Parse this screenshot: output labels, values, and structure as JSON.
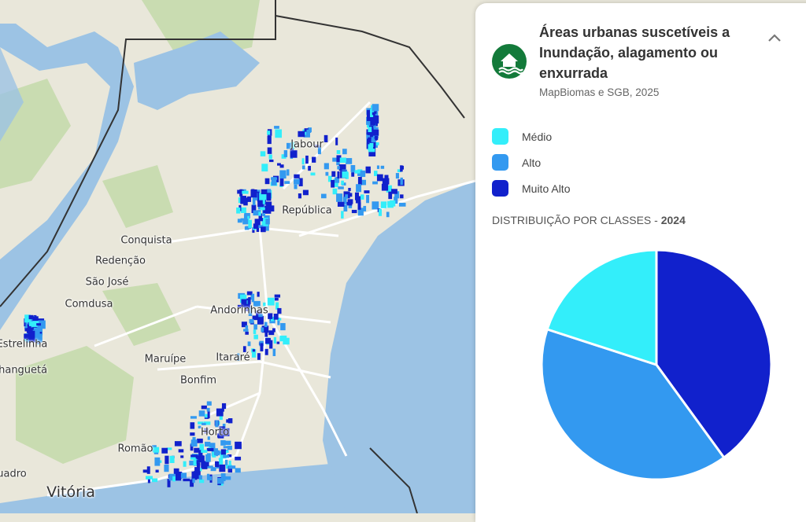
{
  "map": {
    "labels": [
      {
        "text": "Jabour"
      },
      {
        "text": "República"
      },
      {
        "text": "Conquista"
      },
      {
        "text": "Redenção"
      },
      {
        "text": "São José"
      },
      {
        "text": "Comdusa"
      },
      {
        "text": "Andorinhas"
      },
      {
        "text": "Estrelinha"
      },
      {
        "text": "Itararé"
      },
      {
        "text": "Maruípe"
      },
      {
        "text": "nhanguetá"
      },
      {
        "text": "Bonfim"
      },
      {
        "text": "Horto"
      },
      {
        "text": "Romão"
      },
      {
        "text": "uadro"
      },
      {
        "text": "Vitória"
      }
    ],
    "colors": {
      "land": "#e9e7da",
      "water": "#9cc3e4",
      "green": "#c9dcb1",
      "road": "#ffffff",
      "border": "#333333"
    }
  },
  "panel": {
    "icon": "flood-house-icon",
    "title": "Áreas urbanas suscetíveis a Inundação, alagamento ou enxurrada",
    "source": "MapBiomas e SGB, 2025",
    "collapse_icon": "chevron-up-icon",
    "legend": [
      {
        "label": "Médio",
        "color": "#33eefa"
      },
      {
        "label": "Alto",
        "color": "#3399f0"
      },
      {
        "label": "Muito Alto",
        "color": "#1121cc"
      }
    ],
    "distribution_label": "DISTRIBUIÇÃO POR CLASSES - ",
    "distribution_year": "2024"
  },
  "chart_data": {
    "type": "pie",
    "title": "DISTRIBUIÇÃO POR CLASSES - 2024",
    "slices": [
      {
        "label": "Muito Alto",
        "value": 40,
        "color": "#1121cc"
      },
      {
        "label": "Alto",
        "value": 40,
        "color": "#3399f0"
      },
      {
        "label": "Médio",
        "value": 20,
        "color": "#33eefa"
      }
    ]
  }
}
